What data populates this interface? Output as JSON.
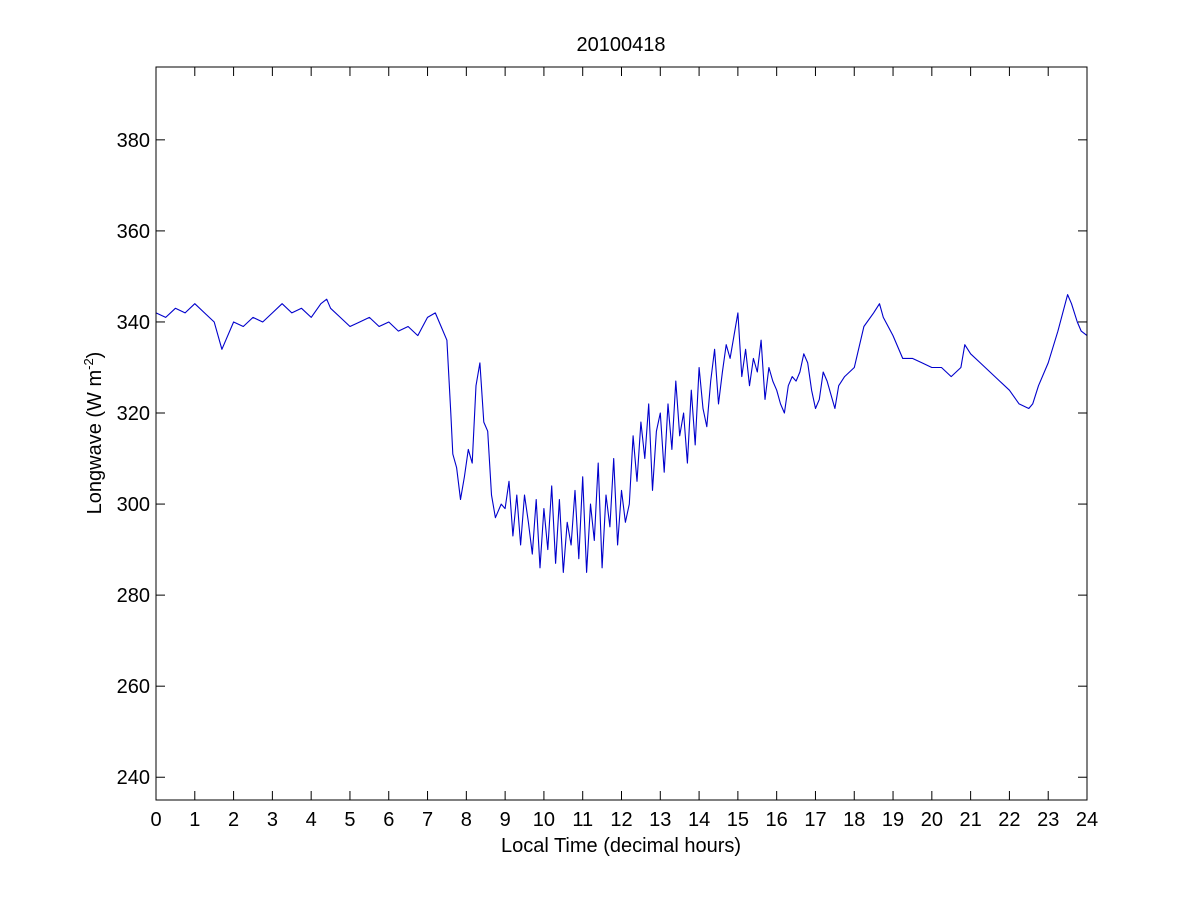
{
  "chart_data": {
    "type": "line",
    "title": "20100418",
    "xlabel": "Local Time (decimal hours)",
    "ylabel": {
      "main": "Longwave (W m",
      "sup": "-2",
      "close": ")"
    },
    "xlim": [
      0,
      24
    ],
    "ylim": [
      235,
      396
    ],
    "xticks": [
      0,
      1,
      2,
      3,
      4,
      5,
      6,
      7,
      8,
      9,
      10,
      11,
      12,
      13,
      14,
      15,
      16,
      17,
      18,
      19,
      20,
      21,
      22,
      23,
      24
    ],
    "yticks": [
      240,
      260,
      280,
      300,
      320,
      340,
      360,
      380
    ],
    "grid": false,
    "line_color": "#0000cc",
    "series": [
      {
        "x": [
          0,
          0.25,
          0.5,
          0.75,
          1,
          1.25,
          1.5,
          1.7,
          1.8,
          2,
          2.25,
          2.5,
          2.75,
          3,
          3.25,
          3.5,
          3.75,
          4,
          4.25,
          4.4,
          4.5,
          4.75,
          5,
          5.25,
          5.5,
          5.75,
          6,
          6.25,
          6.5,
          6.75,
          7,
          7.2,
          7.35,
          7.5,
          7.6,
          7.65,
          7.75,
          7.85,
          7.95,
          8.05,
          8.15,
          8.25,
          8.35,
          8.45,
          8.55,
          8.65,
          8.75,
          8.9,
          9,
          9.1,
          9.2,
          9.3,
          9.4,
          9.5,
          9.6,
          9.7,
          9.8,
          9.9,
          10,
          10.1,
          10.2,
          10.3,
          10.4,
          10.5,
          10.6,
          10.7,
          10.8,
          10.9,
          11,
          11.1,
          11.2,
          11.3,
          11.4,
          11.5,
          11.6,
          11.7,
          11.8,
          11.9,
          12,
          12.1,
          12.2,
          12.3,
          12.4,
          12.5,
          12.6,
          12.7,
          12.8,
          12.9,
          13,
          13.1,
          13.2,
          13.3,
          13.4,
          13.5,
          13.6,
          13.7,
          13.8,
          13.9,
          14,
          14.1,
          14.2,
          14.3,
          14.4,
          14.5,
          14.6,
          14.7,
          14.8,
          14.9,
          15,
          15.1,
          15.2,
          15.3,
          15.4,
          15.5,
          15.6,
          15.7,
          15.8,
          15.9,
          16,
          16.1,
          16.2,
          16.3,
          16.4,
          16.5,
          16.6,
          16.7,
          16.8,
          16.9,
          17,
          17.1,
          17.2,
          17.3,
          17.4,
          17.5,
          17.6,
          17.75,
          18,
          18.25,
          18.5,
          18.65,
          18.75,
          19,
          19.25,
          19.5,
          19.75,
          20,
          20.25,
          20.5,
          20.75,
          20.85,
          21,
          21.25,
          21.5,
          21.75,
          22,
          22.25,
          22.5,
          22.6,
          22.75,
          23,
          23.25,
          23.5,
          23.6,
          23.75,
          23.85,
          24
        ],
        "y": [
          342,
          341,
          343,
          342,
          344,
          342,
          340,
          334,
          336,
          340,
          339,
          341,
          340,
          342,
          344,
          342,
          343,
          341,
          344,
          345,
          343,
          341,
          339,
          340,
          341,
          339,
          340,
          338,
          339,
          337,
          341,
          342,
          339,
          336,
          320,
          311,
          308,
          301,
          306,
          312,
          309,
          326,
          331,
          318,
          316,
          302,
          297,
          300,
          299,
          305,
          293,
          302,
          291,
          302,
          296,
          289,
          301,
          286,
          299,
          290,
          304,
          287,
          301,
          285,
          296,
          291,
          303,
          288,
          306,
          285,
          300,
          292,
          309,
          286,
          302,
          295,
          310,
          291,
          303,
          296,
          300,
          315,
          305,
          318,
          310,
          322,
          303,
          316,
          320,
          307,
          322,
          312,
          327,
          315,
          320,
          309,
          325,
          313,
          330,
          321,
          317,
          327,
          334,
          322,
          329,
          335,
          332,
          337,
          342,
          328,
          334,
          326,
          332,
          329,
          336,
          323,
          330,
          327,
          325,
          322,
          320,
          326,
          328,
          327,
          329,
          333,
          331,
          325,
          321,
          323,
          329,
          327,
          324,
          321,
          326,
          328,
          330,
          339,
          342,
          344,
          341,
          337,
          332,
          332,
          331,
          330,
          330,
          328,
          330,
          335,
          333,
          331,
          329,
          327,
          325,
          322,
          321,
          322,
          326,
          331,
          338,
          346,
          344,
          340,
          338,
          337
        ]
      }
    ]
  }
}
